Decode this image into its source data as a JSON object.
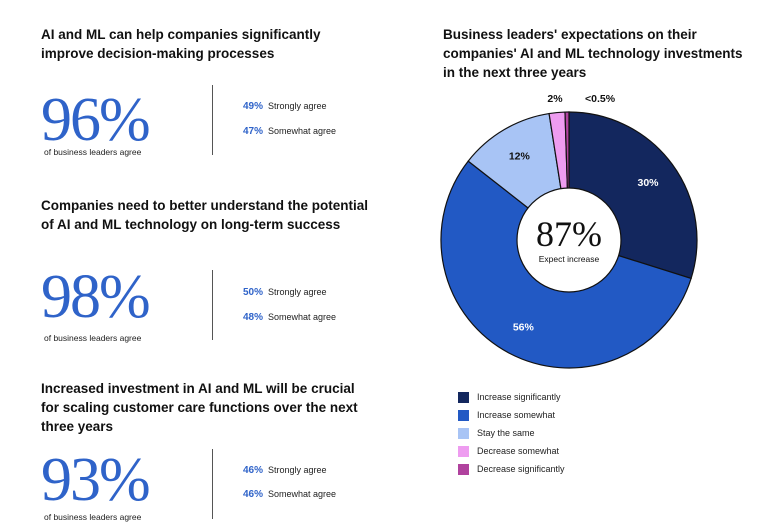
{
  "stats": [
    {
      "heading": "AI and ML can help companies significantly improve decision-making processes",
      "value": "96%",
      "caption": "of business leaders agree",
      "breakdown": [
        {
          "pct": "49%",
          "label": "Strongly agree"
        },
        {
          "pct": "47%",
          "label": "Somewhat agree"
        }
      ]
    },
    {
      "heading": "Companies need to better understand the potential of AI and ML technology on long-term success",
      "value": "98%",
      "caption": "of business leaders agree",
      "breakdown": [
        {
          "pct": "50%",
          "label": "Strongly agree"
        },
        {
          "pct": "48%",
          "label": "Somewhat agree"
        }
      ]
    },
    {
      "heading": "Increased investment in AI and ML will be crucial for scaling customer care functions over the next three years",
      "value": "93%",
      "caption": "of business leaders agree",
      "breakdown": [
        {
          "pct": "46%",
          "label": "Strongly agree"
        },
        {
          "pct": "46%",
          "label": "Somewhat agree"
        }
      ]
    }
  ],
  "chart_data": {
    "type": "pie",
    "donut": true,
    "title": "Business leaders' expectations on their companies' AI and ML technology investments in the next three years",
    "center_value": "87%",
    "center_label": "Expect increase",
    "legend_position": "bottom",
    "slices": [
      {
        "name": "Increase significantly",
        "value": 30,
        "label": "30%",
        "color": "#13275e",
        "label_color": "#ffffff"
      },
      {
        "name": "Increase somewhat",
        "value": 56,
        "label": "56%",
        "color": "#2259c4",
        "label_color": "#ffffff"
      },
      {
        "name": "Stay the same",
        "value": 12,
        "label": "12%",
        "color": "#a8c4f5",
        "label_color": "#111111"
      },
      {
        "name": "Decrease somewhat",
        "value": 2,
        "label": "2%",
        "color": "#ee9cf0",
        "label_color": "#111111"
      },
      {
        "name": "Decrease significantly",
        "value": 0.5,
        "label": "<0.5%",
        "color": "#b0429e",
        "label_color": "#111111"
      }
    ]
  }
}
